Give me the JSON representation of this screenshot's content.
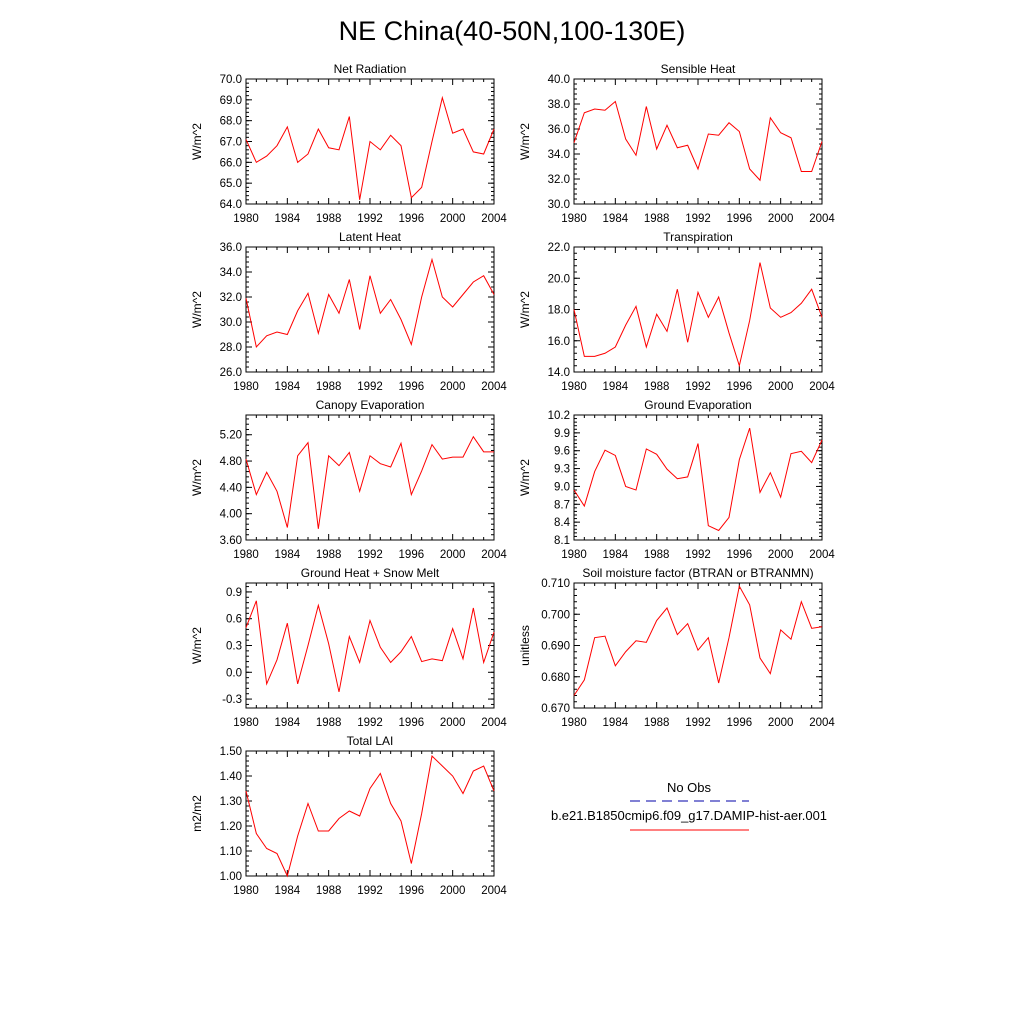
{
  "title": "NE China(40-50N,100-130E)",
  "colors": {
    "model": "#ff0000",
    "obs": "#0000aa",
    "axis": "#000000"
  },
  "legend": {
    "obs_label": "No Obs",
    "model_label": "b.e21.B1850cmip6.f09_g17.DAMIP-hist-aer.001"
  },
  "chart_data": [
    {
      "type": "line",
      "title": "Net Radiation",
      "ylabel": "W/m^2",
      "ylim": [
        64.0,
        70.0
      ],
      "yticks": [
        "64.0",
        "65.0",
        "66.0",
        "67.0",
        "68.0",
        "69.0",
        "70.0"
      ],
      "xlim": [
        1980,
        2004
      ],
      "xticks": [
        "1980",
        "1984",
        "1988",
        "1992",
        "1996",
        "2000",
        "2004"
      ],
      "series": [
        {
          "x": [
            1980,
            1981,
            1982,
            1983,
            1984,
            1985,
            1986,
            1987,
            1988,
            1989,
            1990,
            1991,
            1992,
            1993,
            1994,
            1995,
            1996,
            1997,
            1998,
            1999,
            2000,
            2001,
            2002,
            2003,
            2004
          ],
          "values": [
            67.1,
            66.0,
            66.3,
            66.8,
            67.7,
            66.0,
            66.4,
            67.6,
            66.7,
            66.6,
            68.2,
            64.2,
            67.0,
            66.6,
            67.3,
            66.8,
            64.3,
            64.8,
            67.0,
            69.1,
            67.4,
            67.6,
            66.5,
            66.4,
            67.6
          ]
        }
      ]
    },
    {
      "type": "line",
      "title": "Sensible Heat",
      "ylabel": "W/m^2",
      "ylim": [
        30.0,
        40.0
      ],
      "yticks": [
        "30.0",
        "32.0",
        "34.0",
        "36.0",
        "38.0",
        "40.0"
      ],
      "xlim": [
        1980,
        2004
      ],
      "xticks": [
        "1980",
        "1984",
        "1988",
        "1992",
        "1996",
        "2000",
        "2004"
      ],
      "series": [
        {
          "x": [
            1980,
            1981,
            1982,
            1983,
            1984,
            1985,
            1986,
            1987,
            1988,
            1989,
            1990,
            1991,
            1992,
            1993,
            1994,
            1995,
            1996,
            1997,
            1998,
            1999,
            2000,
            2001,
            2002,
            2003,
            2004
          ],
          "values": [
            34.9,
            37.3,
            37.6,
            37.5,
            38.2,
            35.2,
            33.9,
            37.8,
            34.4,
            36.3,
            34.5,
            34.7,
            32.8,
            35.6,
            35.5,
            36.5,
            35.8,
            32.8,
            31.9,
            36.9,
            35.7,
            35.3,
            32.6,
            32.6,
            35.0
          ]
        }
      ]
    },
    {
      "type": "line",
      "title": "Latent Heat",
      "ylabel": "W/m^2",
      "ylim": [
        26.0,
        36.0
      ],
      "yticks": [
        "26.0",
        "28.0",
        "30.0",
        "32.0",
        "34.0",
        "36.0"
      ],
      "xlim": [
        1980,
        2004
      ],
      "xticks": [
        "1980",
        "1984",
        "1988",
        "1992",
        "1996",
        "2000",
        "2004"
      ],
      "series": [
        {
          "x": [
            1980,
            1981,
            1982,
            1983,
            1984,
            1985,
            1986,
            1987,
            1988,
            1989,
            1990,
            1991,
            1992,
            1993,
            1994,
            1995,
            1996,
            1997,
            1998,
            1999,
            2000,
            2001,
            2002,
            2003,
            2004
          ],
          "values": [
            31.9,
            28.0,
            28.9,
            29.2,
            29.0,
            30.9,
            32.3,
            29.1,
            32.2,
            30.7,
            33.4,
            29.4,
            33.7,
            30.7,
            31.8,
            30.2,
            28.2,
            32.0,
            35.0,
            32.0,
            31.2,
            32.2,
            33.2,
            33.7,
            32.2
          ]
        }
      ]
    },
    {
      "type": "line",
      "title": "Transpiration",
      "ylabel": "W/m^2",
      "ylim": [
        14.0,
        22.0
      ],
      "yticks": [
        "14.0",
        "16.0",
        "18.0",
        "20.0",
        "22.0"
      ],
      "xlim": [
        1980,
        2004
      ],
      "xticks": [
        "1980",
        "1984",
        "1988",
        "1992",
        "1996",
        "2000",
        "2004"
      ],
      "series": [
        {
          "x": [
            1980,
            1981,
            1982,
            1983,
            1984,
            1985,
            1986,
            1987,
            1988,
            1989,
            1990,
            1991,
            1992,
            1993,
            1994,
            1995,
            1996,
            1997,
            1998,
            1999,
            2000,
            2001,
            2002,
            2003,
            2004
          ],
          "values": [
            18.0,
            15.0,
            15.0,
            15.2,
            15.6,
            17.0,
            18.2,
            15.6,
            17.7,
            16.6,
            19.3,
            15.9,
            19.1,
            17.5,
            18.8,
            16.5,
            14.4,
            17.3,
            21.0,
            18.1,
            17.5,
            17.8,
            18.4,
            19.3,
            17.5
          ]
        }
      ]
    },
    {
      "type": "line",
      "title": "Canopy Evaporation",
      "ylabel": "W/m^2",
      "ylim": [
        3.6,
        5.5
      ],
      "yticks": [
        "3.60",
        "4.00",
        "4.40",
        "4.80",
        "5.20"
      ],
      "xlim": [
        1980,
        2004
      ],
      "xticks": [
        "1980",
        "1984",
        "1988",
        "1992",
        "1996",
        "2000",
        "2004"
      ],
      "series": [
        {
          "x": [
            1980,
            1981,
            1982,
            1983,
            1984,
            1985,
            1986,
            1987,
            1988,
            1989,
            1990,
            1991,
            1992,
            1993,
            1994,
            1995,
            1996,
            1997,
            1998,
            1999,
            2000,
            2001,
            2002,
            2003,
            2004
          ],
          "values": [
            4.83,
            4.29,
            4.63,
            4.34,
            3.79,
            4.88,
            5.08,
            3.77,
            4.88,
            4.73,
            4.93,
            4.34,
            4.88,
            4.76,
            4.71,
            5.07,
            4.29,
            4.65,
            5.05,
            4.83,
            4.86,
            4.86,
            5.17,
            4.94,
            4.94
          ]
        }
      ]
    },
    {
      "type": "line",
      "title": "Ground Evaporation",
      "ylabel": "W/m^2",
      "ylim": [
        8.1,
        10.2
      ],
      "yticks": [
        "8.1",
        "8.4",
        "8.7",
        "9.0",
        "9.3",
        "9.6",
        "9.9",
        "10.2"
      ],
      "xlim": [
        1980,
        2004
      ],
      "xticks": [
        "1980",
        "1984",
        "1988",
        "1992",
        "1996",
        "2000",
        "2004"
      ],
      "series": [
        {
          "x": [
            1980,
            1981,
            1982,
            1983,
            1984,
            1985,
            1986,
            1987,
            1988,
            1989,
            1990,
            1991,
            1992,
            1993,
            1994,
            1995,
            1996,
            1997,
            1998,
            1999,
            2000,
            2001,
            2002,
            2003,
            2004
          ],
          "values": [
            8.94,
            8.67,
            9.25,
            9.61,
            9.52,
            9.0,
            8.94,
            9.63,
            9.54,
            9.29,
            9.13,
            9.16,
            9.72,
            8.34,
            8.26,
            8.48,
            9.45,
            9.98,
            8.9,
            9.23,
            8.82,
            9.55,
            9.59,
            9.4,
            9.78
          ]
        }
      ]
    },
    {
      "type": "line",
      "title": "Ground Heat + Snow Melt",
      "ylabel": "W/m^2",
      "ylim": [
        -0.4,
        1.0
      ],
      "yticks": [
        "-0.3",
        "0.0",
        "0.3",
        "0.6",
        "0.9"
      ],
      "xlim": [
        1980,
        2004
      ],
      "xticks": [
        "1980",
        "1984",
        "1988",
        "1992",
        "1996",
        "2000",
        "2004"
      ],
      "series": [
        {
          "x": [
            1980,
            1981,
            1982,
            1983,
            1984,
            1985,
            1986,
            1987,
            1988,
            1989,
            1990,
            1991,
            1992,
            1993,
            1994,
            1995,
            1996,
            1997,
            1998,
            1999,
            2000,
            2001,
            2002,
            2003,
            2004
          ],
          "values": [
            0.5,
            0.8,
            -0.13,
            0.14,
            0.55,
            -0.13,
            0.3,
            0.75,
            0.32,
            -0.22,
            0.4,
            0.11,
            0.58,
            0.28,
            0.11,
            0.23,
            0.4,
            0.12,
            0.15,
            0.13,
            0.49,
            0.15,
            0.72,
            0.11,
            0.45
          ]
        }
      ]
    },
    {
      "type": "line",
      "title": "Soil moisture factor (BTRAN or BTRANMN)",
      "ylabel": "unitless",
      "ylim": [
        0.67,
        0.71
      ],
      "yticks": [
        "0.670",
        "0.680",
        "0.690",
        "0.700",
        "0.710"
      ],
      "xlim": [
        1980,
        2004
      ],
      "xticks": [
        "1980",
        "1984",
        "1988",
        "1992",
        "1996",
        "2000",
        "2004"
      ],
      "series": [
        {
          "x": [
            1980,
            1981,
            1982,
            1983,
            1984,
            1985,
            1986,
            1987,
            1988,
            1989,
            1990,
            1991,
            1992,
            1993,
            1994,
            1995,
            1996,
            1997,
            1998,
            1999,
            2000,
            2001,
            2002,
            2003,
            2004
          ],
          "values": [
            0.674,
            0.679,
            0.6925,
            0.693,
            0.6835,
            0.688,
            0.6915,
            0.691,
            0.698,
            0.702,
            0.6935,
            0.697,
            0.6885,
            0.6925,
            0.678,
            0.6925,
            0.709,
            0.703,
            0.686,
            0.681,
            0.695,
            0.692,
            0.704,
            0.6955,
            0.696
          ]
        }
      ]
    },
    {
      "type": "line",
      "title": "Total LAI",
      "ylabel": "m2/m2",
      "ylim": [
        1.0,
        1.5
      ],
      "yticks": [
        "1.00",
        "1.10",
        "1.20",
        "1.30",
        "1.40",
        "1.50"
      ],
      "xlim": [
        1980,
        2004
      ],
      "xticks": [
        "1980",
        "1984",
        "1988",
        "1992",
        "1996",
        "2000",
        "2004"
      ],
      "series": [
        {
          "x": [
            1980,
            1981,
            1982,
            1983,
            1984,
            1985,
            1986,
            1987,
            1988,
            1989,
            1990,
            1991,
            1992,
            1993,
            1994,
            1995,
            1996,
            1997,
            1998,
            1999,
            2000,
            2001,
            2002,
            2003,
            2004
          ],
          "values": [
            1.34,
            1.17,
            1.11,
            1.09,
            1.0,
            1.16,
            1.29,
            1.18,
            1.18,
            1.23,
            1.26,
            1.24,
            1.35,
            1.41,
            1.29,
            1.22,
            1.05,
            1.25,
            1.48,
            1.44,
            1.4,
            1.33,
            1.42,
            1.44,
            1.34
          ]
        }
      ]
    }
  ]
}
